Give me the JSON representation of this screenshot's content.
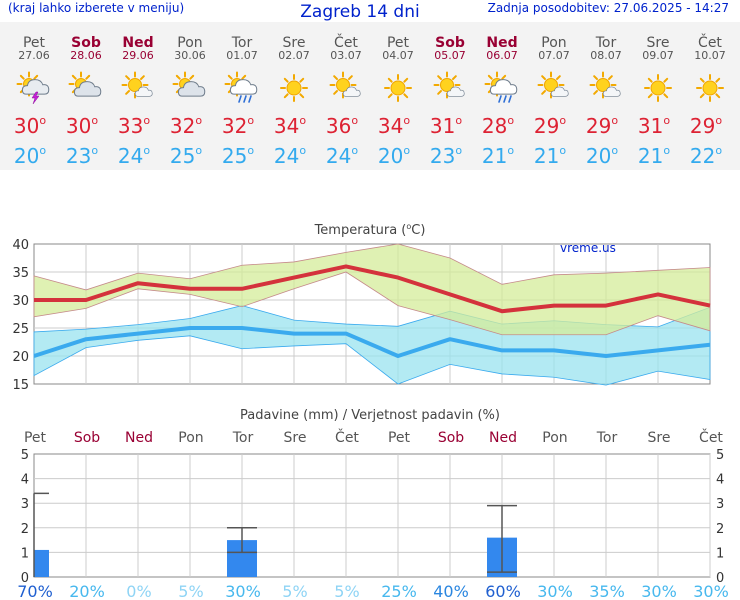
{
  "header": {
    "hint": "(kraj lahko izberete v meniju)",
    "title": "Zagreb 14 dni",
    "updated": "Zadnja posodobitev: 27.06.2025 - 14:27"
  },
  "colors": {
    "weekday": "#555555",
    "weekend": "#990033",
    "max_temp": "#dd2233",
    "min_temp": "#33aaee",
    "max_line": "#d4323c",
    "min_line": "#3aaaee",
    "max_band": "#d4ec9a",
    "min_band": "#99e3ef",
    "bar": "#3388ee",
    "title_blue": "#0022cc"
  },
  "days": [
    {
      "name": "Pet",
      "date": "27.06",
      "weekend": false,
      "icon": "thunderstorm-icon",
      "max": "30",
      "min": "20",
      "rain_prob": "70%"
    },
    {
      "name": "Sob",
      "date": "28.06",
      "weekend": true,
      "icon": "partly-cloudy-icon",
      "max": "30",
      "min": "23",
      "rain_prob": "20%"
    },
    {
      "name": "Ned",
      "date": "29.06",
      "weekend": true,
      "icon": "sun-cloud-icon",
      "max": "33",
      "min": "24",
      "rain_prob": "0%"
    },
    {
      "name": "Pon",
      "date": "30.06",
      "weekend": false,
      "icon": "partly-cloudy-icon",
      "max": "32",
      "min": "25",
      "rain_prob": "5%"
    },
    {
      "name": "Tor",
      "date": "01.07",
      "weekend": false,
      "icon": "rain-shower-icon",
      "max": "32",
      "min": "25",
      "rain_prob": "30%"
    },
    {
      "name": "Sre",
      "date": "02.07",
      "weekend": false,
      "icon": "sun-icon",
      "max": "34",
      "min": "24",
      "rain_prob": "5%"
    },
    {
      "name": "Čet",
      "date": "03.07",
      "weekend": false,
      "icon": "sun-cloud-icon",
      "max": "36",
      "min": "24",
      "rain_prob": "5%"
    },
    {
      "name": "Pet",
      "date": "04.07",
      "weekend": false,
      "icon": "sun-icon",
      "max": "34",
      "min": "20",
      "rain_prob": "25%"
    },
    {
      "name": "Sob",
      "date": "05.07",
      "weekend": true,
      "icon": "sun-cloud-icon",
      "max": "31",
      "min": "23",
      "rain_prob": "40%"
    },
    {
      "name": "Ned",
      "date": "06.07",
      "weekend": true,
      "icon": "rain-shower-icon",
      "max": "28",
      "min": "21",
      "rain_prob": "60%"
    },
    {
      "name": "Pon",
      "date": "07.07",
      "weekend": false,
      "icon": "sun-cloud-icon",
      "max": "29",
      "min": "21",
      "rain_prob": "30%"
    },
    {
      "name": "Tor",
      "date": "08.07",
      "weekend": false,
      "icon": "sun-cloud-icon",
      "max": "29",
      "min": "20",
      "rain_prob": "35%"
    },
    {
      "name": "Sre",
      "date": "09.07",
      "weekend": false,
      "icon": "sun-icon",
      "max": "31",
      "min": "21",
      "rain_prob": "30%"
    },
    {
      "name": "Čet",
      "date": "10.07",
      "weekend": false,
      "icon": "sun-icon",
      "max": "29",
      "min": "22",
      "rain_prob": "30%"
    }
  ],
  "chart_data": [
    {
      "type": "line",
      "title": "Temperatura (°C)",
      "title_text": "Temperatura (",
      "title_unit": "C)",
      "watermark": "vreme.us",
      "ylim": [
        15,
        40
      ],
      "yticks": [
        "15",
        "20",
        "25",
        "30",
        "35",
        "40"
      ],
      "grid": true,
      "series": [
        {
          "values": [
            30,
            30,
            33,
            32,
            32,
            34,
            36,
            34,
            31,
            28,
            29,
            29,
            31,
            29
          ]
        },
        {
          "values": [
            20,
            23,
            24,
            25,
            25,
            24,
            24,
            20,
            23,
            21,
            21,
            20,
            21,
            22
          ]
        }
      ],
      "max_range_low": [
        27,
        28.5,
        32,
        31,
        28.8,
        32,
        35,
        29,
        26.5,
        23.8,
        23.8,
        23.8,
        27.2,
        24.5
      ],
      "max_range_high": [
        34.3,
        31.8,
        34.8,
        33.8,
        36.2,
        36.8,
        38.5,
        40,
        37.5,
        32.8,
        34.5,
        34.8,
        35.3,
        35.8
      ],
      "min_range_low": [
        16.5,
        21.5,
        22.8,
        23.6,
        21.3,
        21.8,
        22.2,
        15,
        18.5,
        16.8,
        16.2,
        14.8,
        17.3,
        15.8
      ],
      "min_range_high": [
        24.3,
        24.8,
        25.6,
        26.7,
        29,
        26.4,
        25.7,
        25.3,
        28,
        25.7,
        26.3,
        25.6,
        25.2,
        28.7
      ]
    },
    {
      "type": "bar",
      "title": "Padavine (mm) / Verjetnost padavin (%)",
      "ylim": [
        0,
        5
      ],
      "yticks": [
        "0",
        "1",
        "2",
        "3",
        "4",
        "5"
      ],
      "grid": true,
      "values": [
        1.1,
        0,
        0,
        0,
        1.5,
        0,
        0,
        0,
        0,
        1.6,
        0,
        0,
        0,
        0
      ],
      "range_low": [
        0,
        0,
        0,
        0,
        1.0,
        0,
        0,
        0,
        0,
        0.2,
        0,
        0,
        0,
        0
      ],
      "range_high": [
        3.4,
        0,
        0,
        0,
        2.0,
        0,
        0,
        0,
        0,
        2.9,
        0,
        0,
        0,
        0
      ]
    }
  ]
}
